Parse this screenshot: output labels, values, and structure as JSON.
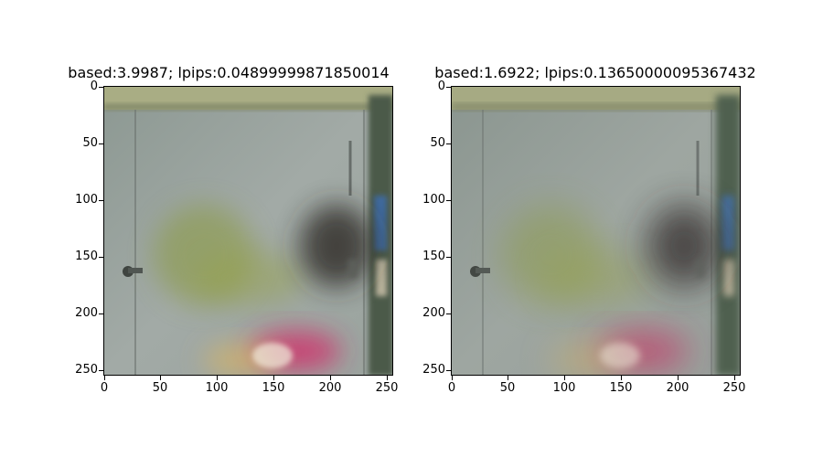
{
  "panels": [
    {
      "title": "based:3.9987; lpips:0.04899999871850014",
      "image_alt": "blurry photo of a white metal door with green, black and magenta graffiti",
      "xticks": [
        "0",
        "50",
        "100",
        "150",
        "200",
        "250"
      ],
      "yticks": [
        "0",
        "50",
        "100",
        "150",
        "200",
        "250"
      ]
    },
    {
      "title": "based:1.6922; lpips:0.13650000095367432",
      "image_alt": "blurrier photo of the same white metal door with graffiti",
      "xticks": [
        "0",
        "50",
        "100",
        "150",
        "200",
        "250"
      ],
      "yticks": [
        "0",
        "50",
        "100",
        "150",
        "200",
        "250"
      ]
    }
  ]
}
